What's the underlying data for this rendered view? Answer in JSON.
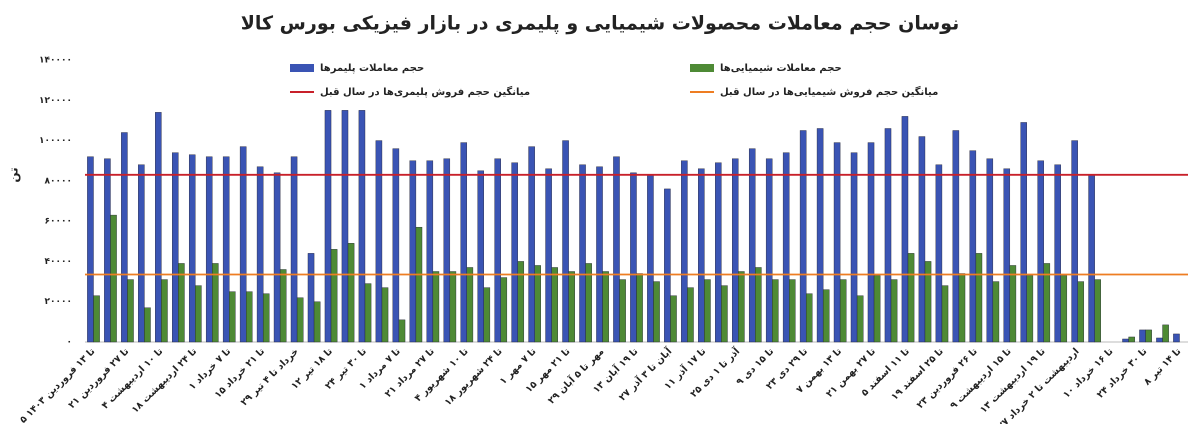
{
  "chart_data": {
    "type": "bar",
    "title": "نوسان حجم معاملات محصولات شیمیایی و پلیمری در بازار فیزیکی بورس کالا",
    "y_label": "تن",
    "categories": [
      "۵ تا ۱۳ فروردین ۱۴۰۳",
      null,
      "۲۱ تا ۲۷ فروردین",
      null,
      "۴ تا ۱۰ اردیبهشت",
      null,
      "۱۸ تا ۲۴ اردیبهشت",
      null,
      "۱ تا ۷ خرداد",
      null,
      "۱۵ تا ۲۱ خرداد",
      null,
      "۲۹ خرداد تا ۴ تیر",
      null,
      "۱۲ تا ۱۸ تیر",
      null,
      "۲۴ تا ۳۰ تیر",
      null,
      "۱ تا ۷ مرداد",
      null,
      "۲۱ تا ۲۷ مرداد",
      null,
      "۴ تا ۱۰ شهریور",
      null,
      "۱۸ تا ۲۴ شهریور",
      null,
      "۱ تا ۷ مهر",
      null,
      "۱۵ تا ۲۱ مهر",
      null,
      "۲۹ مهر تا ۵ آبان",
      null,
      "۱۳ تا ۱۹ آبان",
      null,
      "۲۷ آبان تا ۳ آذر",
      null,
      "۱۱ تا ۱۷ آذر",
      null,
      "۲۵ آذر تا ۱ دی",
      null,
      "۹ تا ۱۵ دی",
      null,
      "۲۳ تا ۲۹ دی",
      null,
      "۷ تا ۱۳ بهمن",
      null,
      "۲۱ تا ۲۷ بهمن",
      null,
      "۵ تا ۱۱ اسفند",
      null,
      "۱۹ تا ۲۵ اسفند",
      null,
      "۲۳ تا ۲۶ فروردین",
      null,
      "۹ تا ۱۵ اردیبهشت",
      null,
      "۱۳ تا ۱۹ اردیبهشت",
      null,
      "۲۷ اردیبهشت تا ۲ خرداد",
      null,
      "۱۰ تا ۱۶ خرداد",
      null,
      "۲۴ تا ۳۰ خرداد",
      null,
      "۸ تا ۱۴ تیر"
    ],
    "series": [
      {
        "name": "حجم معاملات پلیمرها",
        "color": "#3a54b4",
        "values": [
          92000,
          91000,
          104000,
          88000,
          114000,
          94000,
          93000,
          92000,
          92000,
          97000,
          87000,
          84000,
          92000,
          44000,
          115000,
          115000,
          115000,
          100000,
          96000,
          90000,
          90000,
          91000,
          99000,
          85000,
          91000,
          89000,
          97000,
          86000,
          100000,
          88000,
          87000,
          92000,
          84000,
          83000,
          76000,
          90000,
          86000,
          89000,
          91000,
          96000,
          91000,
          94000,
          105000,
          106000,
          99000,
          94000,
          99000,
          106000,
          112000,
          102000,
          88000,
          105000,
          95000,
          91000,
          86000,
          109000,
          90000,
          88000,
          100000,
          83000,
          null,
          1500,
          6000,
          2000,
          4000
        ]
      },
      {
        "name": "حجم معاملات شیمیایی‌ها",
        "color": "#4e8a35",
        "values": [
          23000,
          63000,
          31000,
          17000,
          31000,
          39000,
          28000,
          39000,
          25000,
          25000,
          24000,
          36000,
          22000,
          20000,
          46000,
          49000,
          29000,
          27000,
          11000,
          57000,
          35000,
          35000,
          37000,
          27000,
          32000,
          40000,
          38000,
          37000,
          35000,
          39000,
          35000,
          31000,
          34000,
          30000,
          23000,
          27000,
          31000,
          28000,
          35000,
          37000,
          31000,
          31000,
          24000,
          26000,
          31000,
          23000,
          33000,
          31000,
          44000,
          40000,
          28000,
          34000,
          44000,
          30000,
          38000,
          33000,
          39000,
          33000,
          30000,
          31000,
          null,
          2500,
          6000,
          8500,
          null
        ]
      }
    ],
    "reference_lines": [
      {
        "name": "میانگین حجم فروش پلیمری‌ها در سال قبل",
        "color": "#c8202a",
        "value": 83000
      },
      {
        "name": "میانگین حجم فروش شیمیایی‌ها در سال قبل",
        "color": "#ee7d22",
        "value": 33500
      }
    ],
    "ylim": [
      0,
      140000
    ],
    "yticks": [
      {
        "value": 0,
        "label": "۰"
      },
      {
        "value": 20000,
        "label": "۲۰۰۰۰"
      },
      {
        "value": 40000,
        "label": "۴۰۰۰۰"
      },
      {
        "value": 60000,
        "label": "۶۰۰۰۰"
      },
      {
        "value": 80000,
        "label": "۸۰۰۰۰"
      },
      {
        "value": 100000,
        "label": "۱۰۰۰۰۰"
      },
      {
        "value": 120000,
        "label": "۱۲۰۰۰۰"
      },
      {
        "value": 140000,
        "label": "۱۴۰۰۰۰"
      }
    ],
    "grid": false
  }
}
